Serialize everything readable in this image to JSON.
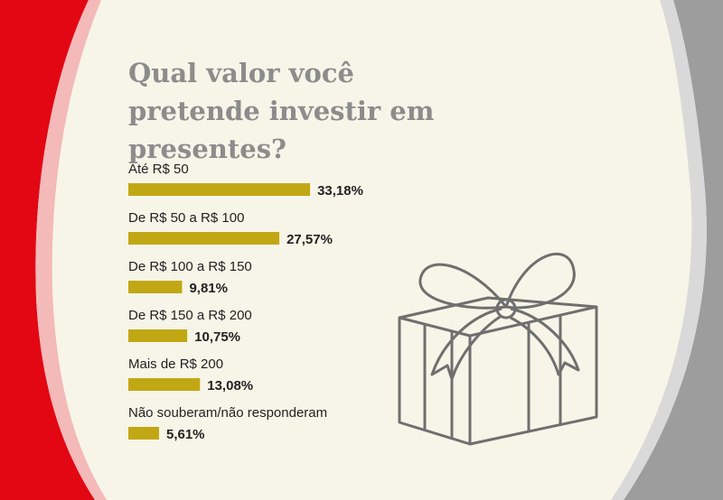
{
  "chart_data": {
    "type": "bar",
    "orientation": "horizontal",
    "title": "Qual valor você pretende investir em presentes?",
    "categories": [
      "Até R$ 50",
      "De R$ 50 a R$ 100",
      "De R$ 100 a R$ 150",
      "De R$ 150 a R$ 200",
      "Mais de R$ 200",
      "Não souberam/não responderam"
    ],
    "values": [
      33.18,
      27.57,
      9.81,
      10.75,
      13.08,
      5.61
    ],
    "value_labels": [
      "33,18%",
      "27,57%",
      "9,81%",
      "10,75%",
      "13,08%",
      "5,61%"
    ],
    "color": "#c2a714"
  }
}
